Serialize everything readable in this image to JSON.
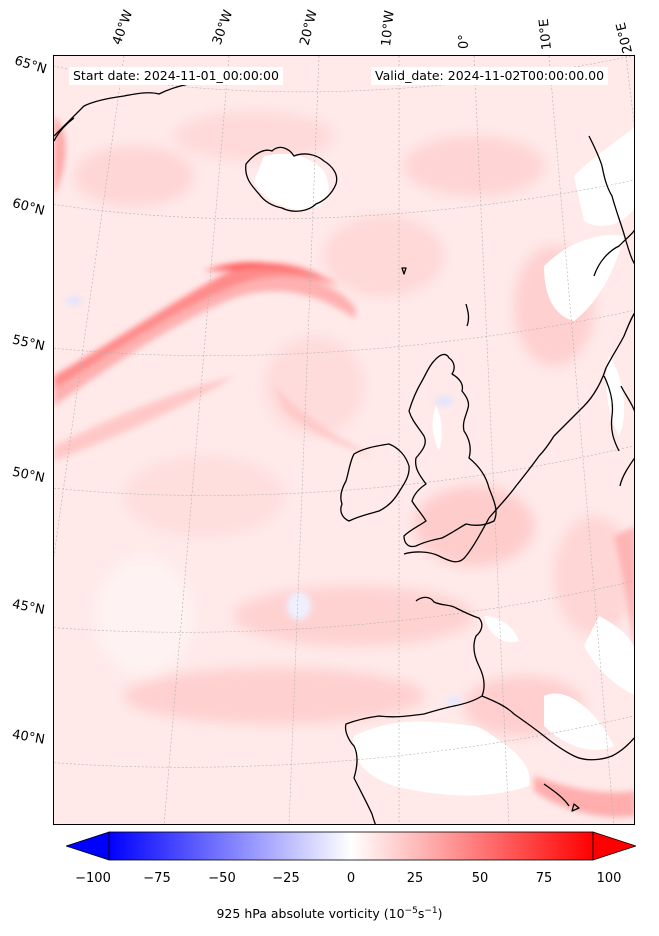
{
  "titles": {
    "start": "Start date: 2024-11-01_00:00:00",
    "valid": "Valid_date: 2024-11-02T00:00:00.00"
  },
  "longitude_labels": [
    "40°W",
    "30°W",
    "20°W",
    "10°W",
    "0°",
    "10°E",
    "20°E"
  ],
  "latitude_labels": [
    "65°N",
    "60°N",
    "55°N",
    "50°N",
    "45°N",
    "40°N"
  ],
  "colorbar": {
    "ticks": [
      "−100",
      "−75",
      "−50",
      "−25",
      "0",
      "25",
      "50",
      "75",
      "100"
    ],
    "label_main": "925 hPa absolute vorticity (10",
    "label_exp1": "−5",
    "label_mid": "s",
    "label_exp2": "−1",
    "label_end": ")",
    "range": [
      -100,
      100
    ],
    "extend": "both",
    "colors": {
      "negative": "#0000ff",
      "zero": "#ffffff",
      "positive": "#ff0000"
    }
  },
  "colors": {
    "background_field": "#ffe9e9",
    "coastline": "#000000",
    "strong_band": "#ff6666",
    "weak_positive": "#ffc6c6",
    "negative_patch": "#e6e8ff",
    "no_data_land": "#ffffff"
  }
}
